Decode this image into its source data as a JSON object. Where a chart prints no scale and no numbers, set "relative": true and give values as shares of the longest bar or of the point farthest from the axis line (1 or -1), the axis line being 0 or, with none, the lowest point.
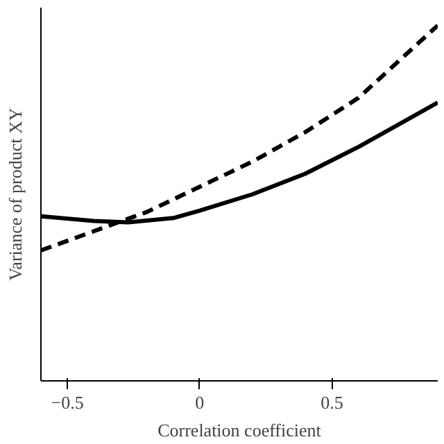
{
  "chart_data": {
    "type": "line",
    "relative": true,
    "xlabel": "Correlation coefficient",
    "ylabel": "Variance of product XY",
    "x": [
      -0.6,
      -0.4,
      -0.27,
      -0.1,
      0,
      0.2,
      0.4,
      0.6,
      0.9
    ],
    "xlim": [
      -0.6,
      0.9
    ],
    "xticks": [
      -0.5,
      0,
      0.5
    ],
    "grid": false,
    "series": [
      {
        "color": "#000000",
        "line_style": "solid",
        "values": [
          0.463,
          0.45,
          0.446,
          0.458,
          0.479,
          0.525,
          0.583,
          0.658,
          0.783
        ]
      },
      {
        "color": "#000000",
        "line_style": "dashed",
        "x": [
          -0.6,
          -0.4,
          -0.2,
          0,
          0.2,
          0.4,
          0.6,
          0.9
        ],
        "values": [
          0.367,
          0.421,
          0.475,
          0.546,
          0.617,
          0.7,
          0.796,
          1
        ]
      }
    ]
  }
}
